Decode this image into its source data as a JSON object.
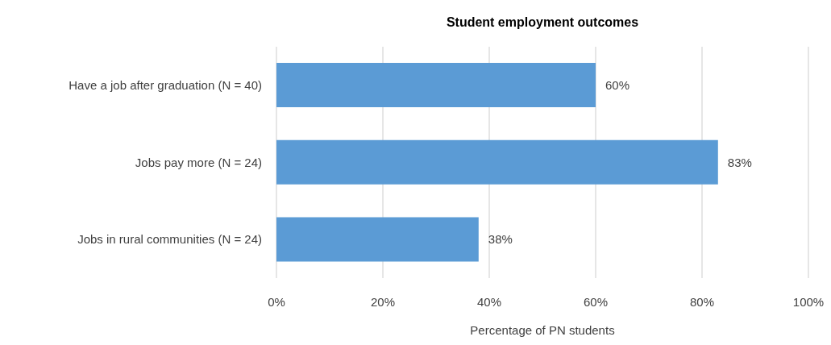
{
  "chart_data": {
    "type": "bar",
    "orientation": "horizontal",
    "title": "Student employment outcomes",
    "xlabel": "Percentage of PN students",
    "categories": [
      "Have a job after graduation (N = 40)",
      "Jobs pay more (N = 24)",
      "Jobs in rural communities (N = 24)"
    ],
    "values": [
      60,
      83,
      38
    ],
    "value_labels": [
      "60%",
      "83%",
      "38%"
    ],
    "color": "#5b9bd5",
    "xlim": [
      0,
      100
    ],
    "xticks": [
      {
        "value": 0,
        "label": "0%"
      },
      {
        "value": 20,
        "label": "20%"
      },
      {
        "value": 40,
        "label": "40%"
      },
      {
        "value": 60,
        "label": "60%"
      },
      {
        "value": 80,
        "label": "80%"
      },
      {
        "value": 100,
        "label": "100%"
      }
    ],
    "grid": "x",
    "legend": false
  }
}
